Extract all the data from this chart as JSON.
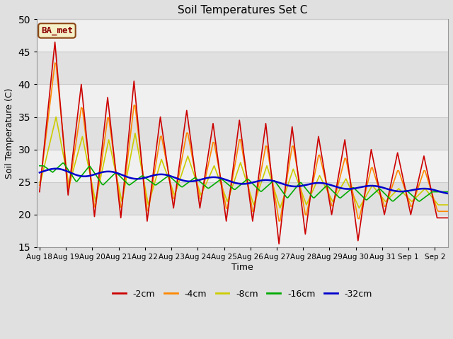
{
  "title": "Soil Temperatures Set C",
  "xlabel": "Time",
  "ylabel": "Soil Temperature (C)",
  "ylim": [
    15,
    50
  ],
  "yticks": [
    15,
    20,
    25,
    30,
    35,
    40,
    45,
    50
  ],
  "annotation_text": "BA_met",
  "annotation_box_color": "#f5f0c8",
  "annotation_border_color": "#8B4513",
  "legend_entries": [
    "-2cm",
    "-4cm",
    "-8cm",
    "-16cm",
    "-32cm"
  ],
  "line_colors": [
    "#cc0000",
    "#ff8800",
    "#cccc00",
    "#00aa00",
    "#0000cc"
  ],
  "line_widths": [
    1.2,
    1.2,
    1.2,
    1.2,
    1.8
  ],
  "background_color": "#e0e0e0",
  "plot_bg_color": "#ffffff",
  "band_colors": [
    "#f0f0f0",
    "#e0e0e0"
  ],
  "grid_color": "#cccccc",
  "day_labels": [
    "Aug 18",
    "Aug 19",
    "Aug 20",
    "Aug 21",
    "Aug 22",
    "Aug 23",
    "Aug 24",
    "Aug 25",
    "Aug 26",
    "Aug 27",
    "Aug 28",
    "Aug 29",
    "Aug 30",
    "Aug 31",
    "Sep 1",
    "Sep 2"
  ],
  "peaks_2": [
    46.5,
    40.0,
    38.0,
    40.5,
    35.0,
    36.0,
    34.0,
    34.5,
    34.0,
    33.5,
    32.0,
    31.5,
    30.0,
    29.5,
    29.0
  ],
  "troughs_2": [
    23.5,
    23.0,
    19.7,
    19.5,
    19.0,
    21.0,
    21.0,
    19.0,
    19.0,
    15.5,
    17.0,
    20.0,
    16.0,
    20.0,
    20.0,
    19.5
  ],
  "peaks_4": [
    44.0,
    37.0,
    35.5,
    37.5,
    32.5,
    33.0,
    31.5,
    32.0,
    31.0,
    31.0,
    29.5,
    29.0,
    27.5,
    27.0,
    27.0
  ],
  "troughs_4": [
    24.5,
    23.5,
    20.5,
    20.5,
    20.0,
    22.0,
    22.0,
    20.5,
    20.0,
    18.5,
    19.5,
    21.0,
    19.0,
    21.0,
    21.0,
    20.5
  ],
  "peaks_8": [
    35.0,
    32.0,
    31.5,
    32.5,
    28.5,
    29.0,
    27.5,
    28.0,
    27.5,
    27.0,
    26.0,
    25.5,
    24.5,
    24.0,
    24.0
  ],
  "troughs_8": [
    25.0,
    24.5,
    22.0,
    22.0,
    21.5,
    23.0,
    23.0,
    22.0,
    21.5,
    21.0,
    21.5,
    22.0,
    21.0,
    22.0,
    22.0,
    21.5
  ],
  "peaks_16_t": [
    0.15,
    0.9,
    1.9,
    2.9,
    3.9,
    4.9,
    5.9,
    6.9,
    7.9,
    8.9,
    9.9,
    10.9,
    11.9,
    12.9,
    13.9,
    14.9
  ],
  "peaks_16_v": [
    27.5,
    28.0,
    27.5,
    26.5,
    26.0,
    26.0,
    25.7,
    25.5,
    25.5,
    25.3,
    25.0,
    24.5,
    24.2,
    24.0,
    23.8,
    23.5
  ],
  "troughs_16_t": [
    0.5,
    1.4,
    2.4,
    3.4,
    4.4,
    5.4,
    6.4,
    7.4,
    8.4,
    9.4,
    10.4,
    11.4,
    12.4,
    13.4,
    14.4
  ],
  "troughs_16_v": [
    26.5,
    25.0,
    24.5,
    24.5,
    24.5,
    24.2,
    24.0,
    23.8,
    23.5,
    22.5,
    22.5,
    22.5,
    22.2,
    22.0,
    22.0
  ],
  "peak_hour_2": 14,
  "peak_hour_4": 14.5,
  "peak_hour_8": 15
}
